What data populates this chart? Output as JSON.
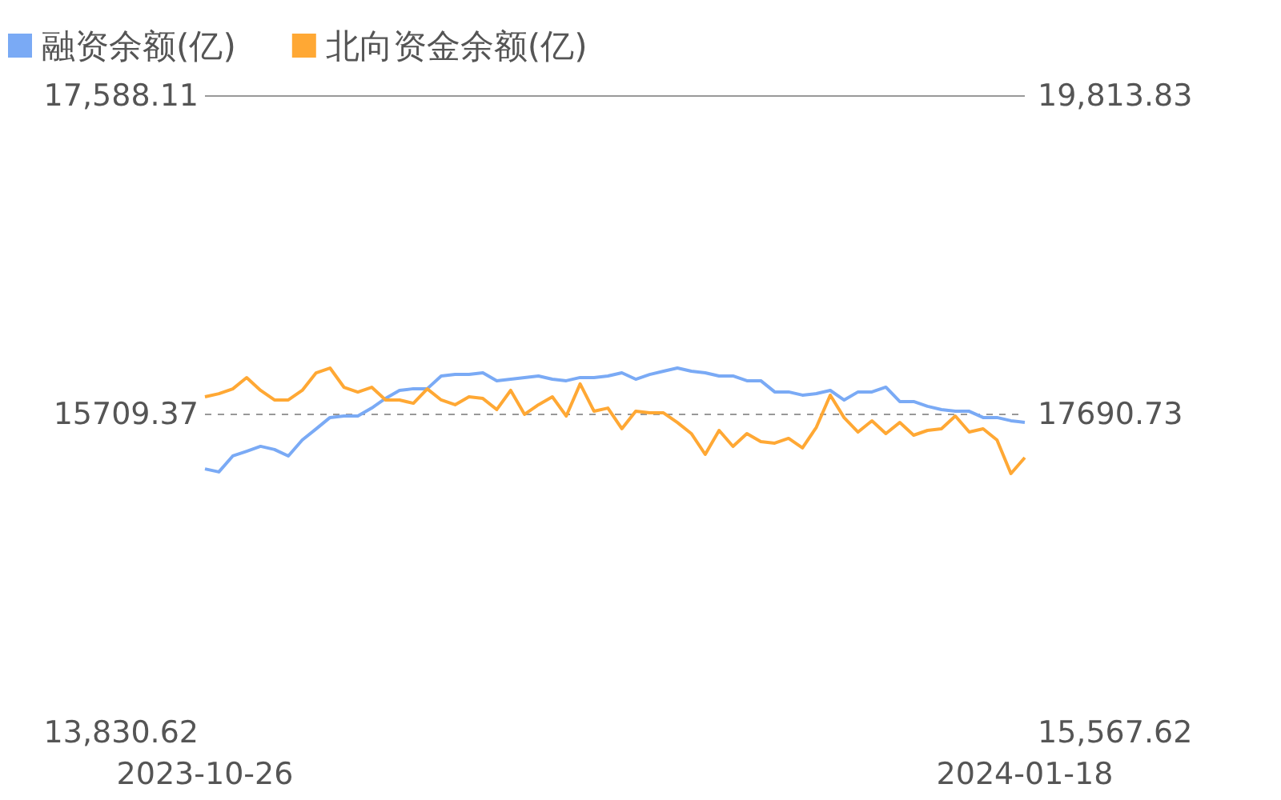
{
  "chart_data": {
    "type": "line",
    "categories": [
      "2023-10-26",
      null,
      null,
      null,
      null,
      null,
      null,
      null,
      null,
      null,
      null,
      null,
      null,
      null,
      null,
      null,
      null,
      null,
      null,
      null,
      null,
      null,
      null,
      null,
      null,
      null,
      null,
      null,
      null,
      null,
      null,
      null,
      null,
      null,
      null,
      null,
      null,
      null,
      null,
      null,
      null,
      null,
      null,
      null,
      null,
      null,
      null,
      null,
      null,
      null,
      null,
      null,
      null,
      null,
      null,
      null,
      null,
      null,
      null,
      "2024-01-18"
    ],
    "series": [
      {
        "name": "融资余额(亿)",
        "color": "#7aaaf5",
        "values": [
          15388,
          15370,
          15464,
          15492,
          15521,
          15502,
          15464,
          15558,
          15624,
          15691,
          15700,
          15700,
          15747,
          15804,
          15851,
          15861,
          15861,
          15936,
          15945,
          15945,
          15955,
          15908,
          15917,
          15927,
          15936,
          15917,
          15908,
          15927,
          15927,
          15936,
          15955,
          15917,
          15945,
          15964,
          15983,
          15964,
          15955,
          15936,
          15936,
          15908,
          15908,
          15842,
          15842,
          15823,
          15832,
          15851,
          15794,
          15842,
          15842,
          15870,
          15785,
          15785,
          15757,
          15738,
          15728,
          15728,
          15691,
          15691,
          15672,
          15662
        ]
      },
      {
        "name": "北向资金余额(亿)",
        "color": "#ffa834",
        "axis": "y2",
        "values": [
          17808,
          17829,
          17861,
          17936,
          17851,
          17787,
          17787,
          17851,
          17968,
          18000,
          17872,
          17840,
          17872,
          17787,
          17787,
          17765,
          17861,
          17787,
          17755,
          17808,
          17797,
          17723,
          17851,
          17691,
          17755,
          17808,
          17680,
          17894,
          17712,
          17733,
          17595,
          17712,
          17701,
          17701,
          17637,
          17563,
          17424,
          17584,
          17477,
          17563,
          17509,
          17499,
          17531,
          17467,
          17605,
          17819,
          17669,
          17573,
          17648,
          17563,
          17637,
          17552,
          17584,
          17595,
          17680,
          17573,
          17595,
          17520,
          17296,
          17403
        ]
      }
    ],
    "ylim": [
      13830.62,
      17588.11
    ],
    "yticks": [
      {
        "value": 13830.62,
        "label": "13,830.62"
      },
      {
        "value": 15709.37,
        "label": "15709.37"
      },
      {
        "value": 17588.11,
        "label": "17,588.11"
      }
    ],
    "y2lim": [
      15567.62,
      19813.83
    ],
    "y2ticks": [
      {
        "value": 15567.62,
        "label": "15,567.62"
      },
      {
        "value": 17690.73,
        "label": "17690.73"
      },
      {
        "value": 19813.83,
        "label": "19,813.83"
      }
    ],
    "grid": "y",
    "legend": "top left",
    "marker": "none",
    "line_style": "solid"
  }
}
